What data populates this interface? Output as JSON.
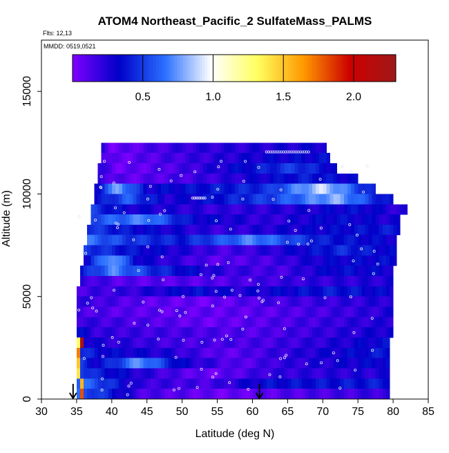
{
  "chart_data": {
    "type": "heatmap",
    "title": "ATOM4 Northeast_Pacific_2 SulfateMass_PALMS",
    "subtitle_flights": "Flts: 12,13",
    "subtitle_dates": "MMDD: 0519,0521",
    "xlabel": "Latitude (deg N)",
    "ylabel": "Altitude (m)",
    "xlim": [
      30,
      85
    ],
    "ylim": [
      0,
      17500
    ],
    "x_ticks": [
      "30",
      "35",
      "40",
      "45",
      "50",
      "55",
      "60",
      "65",
      "70",
      "75",
      "80",
      "85"
    ],
    "y_ticks": [
      "0",
      "5000",
      "10000",
      "15000"
    ],
    "colorbar": {
      "range": [
        0,
        2.3
      ],
      "ticks": [
        "0.5",
        "1.0",
        "1.5",
        "2.0"
      ],
      "colors": [
        "#7f00ff",
        "#0000c8",
        "#2a6fff",
        "#ffffff",
        "#ffff60",
        "#ff9900",
        "#cc0000",
        "#a01818"
      ]
    },
    "rows": [
      {
        "alt": [
          12000,
          12500
        ],
        "x": [
          38.5,
          70.5
        ],
        "segments": [
          [
            38.5,
            0.25
          ],
          [
            40,
            0.05
          ],
          [
            50,
            0.2
          ],
          [
            62,
            0.25
          ],
          [
            70.5,
            0.3
          ]
        ]
      },
      {
        "alt": [
          11500,
          12000
        ],
        "x": [
          38.5,
          71.0
        ],
        "segments": [
          [
            38.5,
            0.2
          ],
          [
            40,
            0.05
          ],
          [
            48,
            0.15
          ],
          [
            62,
            0.3
          ],
          [
            71,
            0.35
          ]
        ]
      },
      {
        "alt": [
          11000,
          11500
        ],
        "x": [
          38.0,
          72.0
        ],
        "segments": [
          [
            38,
            0.2
          ],
          [
            41,
            0.05
          ],
          [
            50,
            0.15
          ],
          [
            66,
            0.5
          ],
          [
            72,
            0.3
          ]
        ]
      },
      {
        "alt": [
          10500,
          11000
        ],
        "x": [
          38.0,
          75.0
        ],
        "segments": [
          [
            38,
            0.2
          ],
          [
            42,
            0.08
          ],
          [
            55,
            0.2
          ],
          [
            68,
            0.4
          ],
          [
            75,
            0.3
          ]
        ]
      },
      {
        "alt": [
          10000,
          10500
        ],
        "x": [
          37.5,
          77.5
        ],
        "segments": [
          [
            37.5,
            0.3
          ],
          [
            41,
            0.8
          ],
          [
            45,
            0.3
          ],
          [
            62,
            0.45
          ],
          [
            70,
            0.9
          ],
          [
            77.5,
            0.35
          ]
        ]
      },
      {
        "alt": [
          9500,
          10000
        ],
        "x": [
          37.5,
          80.0
        ],
        "segments": [
          [
            37.5,
            0.3
          ],
          [
            42,
            0.6
          ],
          [
            48,
            0.25
          ],
          [
            62,
            0.5
          ],
          [
            72,
            0.8
          ],
          [
            80,
            0.3
          ]
        ]
      },
      {
        "alt": [
          9000,
          9500
        ],
        "x": [
          37.0,
          82.0
        ],
        "segments": [
          [
            37,
            0.5
          ],
          [
            42,
            0.3
          ],
          [
            55,
            0.2
          ],
          [
            66,
            0.25
          ],
          [
            75,
            0.35
          ],
          [
            82,
            0.2
          ]
        ]
      },
      {
        "alt": [
          8500,
          9000
        ],
        "x": [
          37.0,
          81.0
        ],
        "segments": [
          [
            37,
            0.55
          ],
          [
            45,
            0.7
          ],
          [
            51,
            0.35
          ],
          [
            62,
            0.2
          ],
          [
            72,
            0.35
          ],
          [
            81,
            0.25
          ]
        ]
      },
      {
        "alt": [
          8000,
          8500
        ],
        "x": [
          36.5,
          81.0
        ],
        "segments": [
          [
            36.5,
            0.5
          ],
          [
            43,
            0.35
          ],
          [
            55,
            0.2
          ],
          [
            68,
            0.3
          ],
          [
            81,
            0.4
          ]
        ]
      },
      {
        "alt": [
          7500,
          8000
        ],
        "x": [
          36.5,
          80.5
        ],
        "segments": [
          [
            36.5,
            0.65
          ],
          [
            42,
            0.5
          ],
          [
            50,
            0.4
          ],
          [
            60,
            0.7
          ],
          [
            70,
            0.4
          ],
          [
            80.5,
            0.3
          ]
        ]
      },
      {
        "alt": [
          7000,
          7500
        ],
        "x": [
          36.0,
          80.5
        ],
        "segments": [
          [
            36,
            0.5
          ],
          [
            44,
            0.35
          ],
          [
            56,
            0.15
          ],
          [
            64,
            0.25
          ],
          [
            73,
            0.45
          ],
          [
            80.5,
            0.3
          ]
        ]
      },
      {
        "alt": [
          6500,
          7000
        ],
        "x": [
          36.0,
          80.5
        ],
        "segments": [
          [
            36,
            0.3
          ],
          [
            40,
            0.8
          ],
          [
            44,
            0.3
          ],
          [
            55,
            0.1
          ],
          [
            62,
            0.15
          ],
          [
            70,
            0.3
          ],
          [
            80.5,
            0.35
          ]
        ]
      },
      {
        "alt": [
          6000,
          6500
        ],
        "x": [
          35.5,
          80.0
        ],
        "segments": [
          [
            35.5,
            0.35
          ],
          [
            40,
            0.7
          ],
          [
            46,
            0.45
          ],
          [
            56,
            0.2
          ],
          [
            64,
            0.15
          ],
          [
            72,
            0.35
          ],
          [
            80,
            0.3
          ]
        ]
      },
      {
        "alt": [
          5500,
          6000
        ],
        "x": [
          35.5,
          80.0
        ],
        "segments": [
          [
            35.5,
            0.2
          ],
          [
            42,
            0.1
          ],
          [
            55,
            0.12
          ],
          [
            66,
            0.2
          ],
          [
            80,
            0.25
          ]
        ]
      },
      {
        "alt": [
          5000,
          5500
        ],
        "x": [
          35.0,
          80.0
        ],
        "segments": [
          [
            35,
            0.15
          ],
          [
            42,
            0.2
          ],
          [
            52,
            0.35
          ],
          [
            58,
            0.25
          ],
          [
            72,
            0.4
          ],
          [
            80,
            0.3
          ]
        ]
      },
      {
        "alt": [
          4500,
          5000
        ],
        "x": [
          35.0,
          80.0
        ],
        "segments": [
          [
            35,
            0.2
          ],
          [
            44,
            0.1
          ],
          [
            54,
            0.05
          ],
          [
            62,
            0.15
          ],
          [
            72,
            0.2
          ],
          [
            80,
            0.25
          ]
        ]
      },
      {
        "alt": [
          4000,
          4500
        ],
        "x": [
          35.0,
          80.0
        ],
        "segments": [
          [
            35,
            0.15
          ],
          [
            42,
            0.1
          ],
          [
            54,
            0.08
          ],
          [
            62,
            0.1
          ],
          [
            75,
            0.2
          ],
          [
            80,
            0.25
          ]
        ]
      },
      {
        "alt": [
          3500,
          4000
        ],
        "x": [
          35.0,
          80.0
        ],
        "segments": [
          [
            35,
            0.2
          ],
          [
            42,
            0.15
          ],
          [
            54,
            0.06
          ],
          [
            60,
            0.1
          ],
          [
            72,
            0.2
          ],
          [
            80,
            0.25
          ]
        ]
      },
      {
        "alt": [
          3000,
          3500
        ],
        "x": [
          35.0,
          80.0
        ],
        "segments": [
          [
            35,
            0.35
          ],
          [
            38,
            0.2
          ],
          [
            52,
            0.15
          ],
          [
            60,
            0.12
          ],
          [
            70,
            0.2
          ],
          [
            80,
            0.3
          ]
        ]
      },
      {
        "alt": [
          2500,
          3000
        ],
        "x": [
          35.0,
          79.5
        ],
        "segments": [
          [
            35,
            0.4
          ],
          [
            38,
            0.25
          ],
          [
            50,
            0.15
          ],
          [
            62,
            0.15
          ],
          [
            72,
            0.25
          ],
          [
            79.5,
            0.35
          ]
        ]
      },
      {
        "alt": [
          2000,
          2500
        ],
        "x": [
          35.0,
          79.5
        ],
        "segments": [
          [
            35,
            0.5
          ],
          [
            38,
            0.35
          ],
          [
            48,
            0.25
          ],
          [
            56,
            0.08
          ],
          [
            64,
            0.2
          ],
          [
            72,
            0.3
          ],
          [
            79.5,
            0.4
          ]
        ]
      },
      {
        "alt": [
          1500,
          2000
        ],
        "x": [
          35.0,
          79.5
        ],
        "segments": [
          [
            35,
            0.5
          ],
          [
            38,
            0.3
          ],
          [
            44,
            0.75
          ],
          [
            50,
            0.3
          ],
          [
            58,
            0.1
          ],
          [
            64,
            0.2
          ],
          [
            79.5,
            0.35
          ]
        ]
      },
      {
        "alt": [
          1000,
          1500
        ],
        "x": [
          35.0,
          79.5
        ],
        "segments": [
          [
            35,
            0.6
          ],
          [
            38,
            0.4
          ],
          [
            46,
            0.2
          ],
          [
            54,
            0.05
          ],
          [
            62,
            0.2
          ],
          [
            79.5,
            0.25
          ]
        ]
      },
      {
        "alt": [
          500,
          1000
        ],
        "x": [
          35.0,
          79.5
        ],
        "segments": [
          [
            35,
            0.65
          ],
          [
            38,
            0.55
          ],
          [
            44,
            0.2
          ],
          [
            54,
            0.15
          ],
          [
            62,
            0.35
          ],
          [
            79.5,
            0.4
          ]
        ]
      },
      {
        "alt": [
          0,
          500
        ],
        "x": [
          35.0,
          79.5
        ],
        "segments": [
          [
            35,
            0.6
          ],
          [
            38,
            0.5
          ],
          [
            44,
            0.15
          ],
          [
            56,
            0.05
          ],
          [
            62,
            0.1
          ],
          [
            79.5,
            0.2
          ]
        ]
      }
    ],
    "hot_cells": [
      {
        "alt": [
          0,
          500
        ],
        "x": [
          35.5,
          36.0
        ],
        "value": 1.8
      },
      {
        "alt": [
          500,
          1000
        ],
        "x": [
          35.5,
          36.0
        ],
        "value": 1.55
      },
      {
        "alt": [
          1000,
          1500
        ],
        "x": [
          35.0,
          35.5
        ],
        "value": 1.4
      },
      {
        "alt": [
          1500,
          2000
        ],
        "x": [
          35.0,
          35.5
        ],
        "value": 1.5
      },
      {
        "alt": [
          2000,
          2500
        ],
        "x": [
          35.0,
          35.5
        ],
        "value": 1.7
      },
      {
        "alt": [
          2500,
          3000
        ],
        "x": [
          35.0,
          35.5
        ],
        "value": 1.3
      },
      {
        "alt": [
          2500,
          3000
        ],
        "x": [
          35.5,
          36.0
        ],
        "value": 2.2
      }
    ],
    "arrows": [
      34.5,
      61.0
    ]
  }
}
